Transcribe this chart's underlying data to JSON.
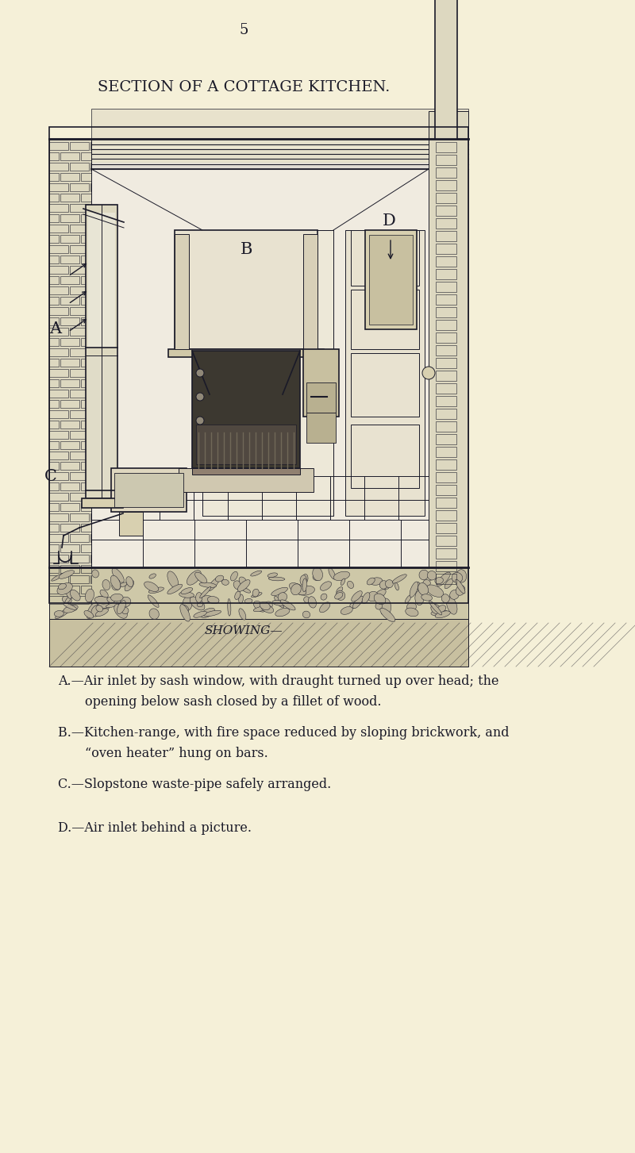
{
  "bg_color": "#f5f0d8",
  "page_number": "5",
  "title": "SECTION OF A COTTAGE KITCHEN.",
  "showing_label": "SHOWING—",
  "legend_items": [
    {
      "label": "A.",
      "text1": "A.—Air inlet by sash window, with draught turned up over head; the",
      "text2": "opening below sash closed by a fillet of wood."
    },
    {
      "label": "B.",
      "text1": "B.—Kitchen-range, with fire space reduced by sloping brickwork, and",
      "text2": "“oven heater” hung on bars."
    },
    {
      "label": "C.",
      "text1": "C.—Slopstone waste-pipe safely arranged.",
      "text2": ""
    },
    {
      "label": "D.",
      "text1": "D.—Air inlet behind a picture.",
      "text2": ""
    }
  ],
  "fig_width": 8.0,
  "fig_height": 14.53,
  "ink_color": "#1a1a28",
  "bg_color_light": "#ece8cc",
  "bg_color_dark": "#d8d0b0"
}
